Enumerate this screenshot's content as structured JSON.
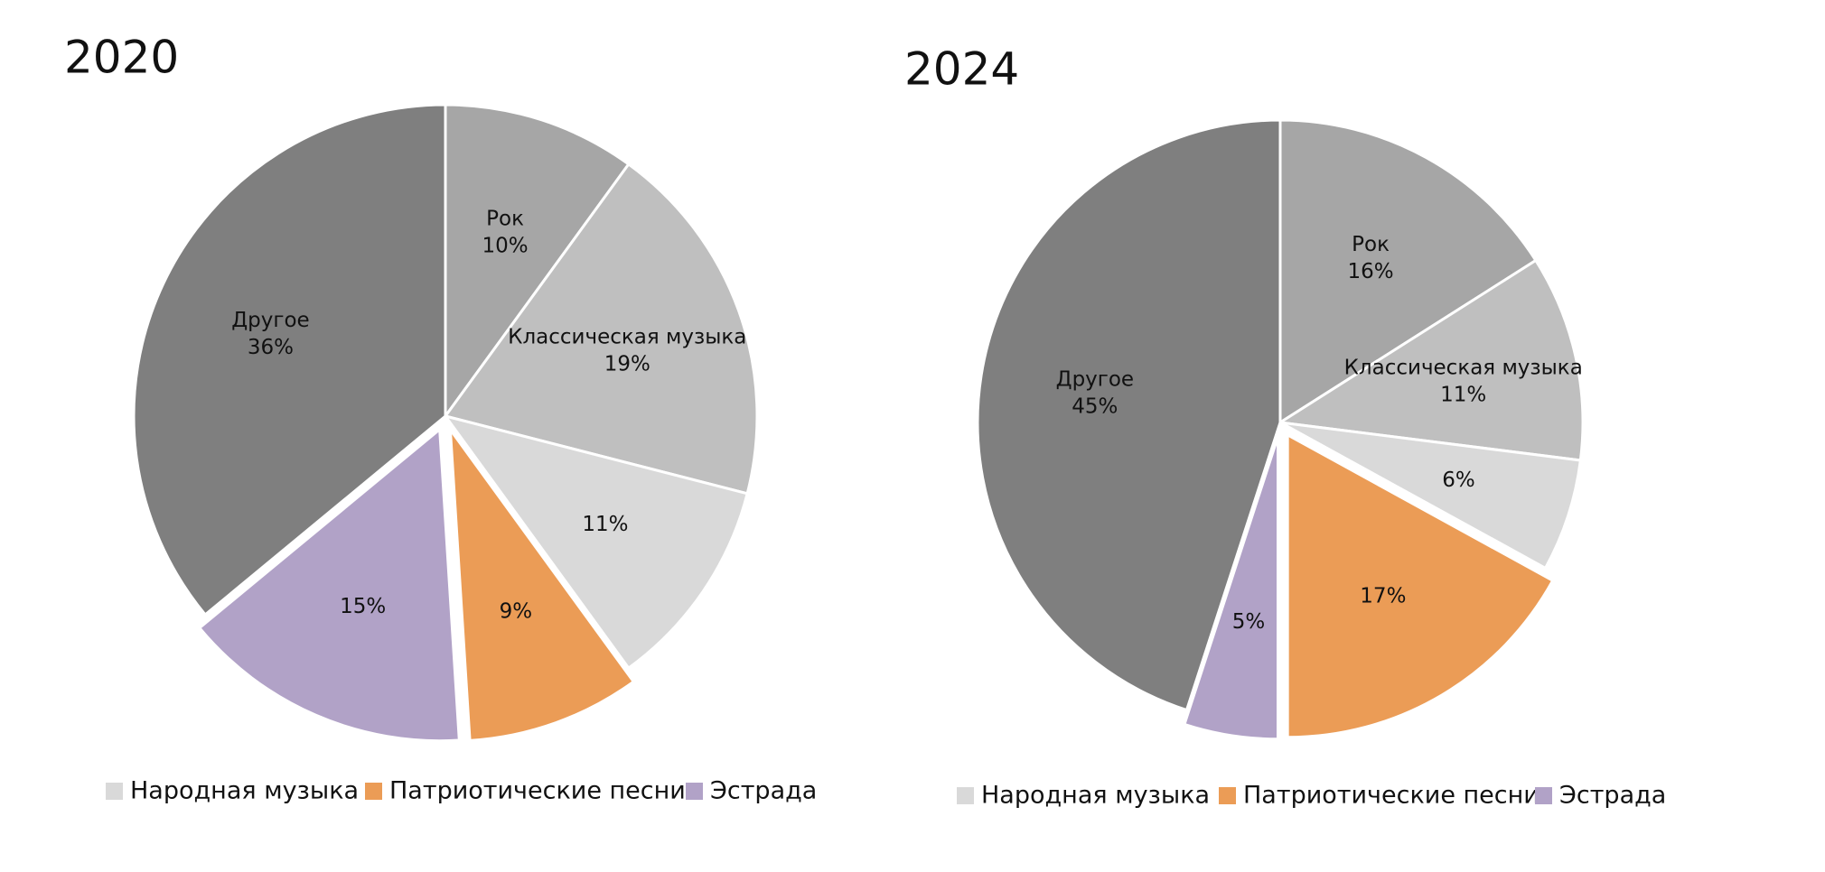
{
  "chart_data": [
    {
      "type": "pie",
      "title": "2020",
      "categories": [
        "Рок",
        "Классическая музыка",
        "Народная музыка",
        "Патриотические песни",
        "Эстрада",
        "Другое"
      ],
      "values": [
        10,
        19,
        11,
        9,
        15,
        36
      ],
      "value_labels": [
        "10%",
        "19%",
        "11%",
        "9%",
        "15%",
        "36%"
      ],
      "colors": [
        "#a6a6a6",
        "#bfbfbf",
        "#d9d9d9",
        "#eb9c56",
        "#b1a2c7",
        "#7f7f7f"
      ],
      "exploded": [
        false,
        false,
        false,
        true,
        true,
        false
      ],
      "in_legend": [
        false,
        false,
        true,
        true,
        true,
        false
      ]
    },
    {
      "type": "pie",
      "title": "2024",
      "categories": [
        "Рок",
        "Классическая музыка",
        "Народная музыка",
        "Патриотические песни",
        "Эстрада",
        "Другое"
      ],
      "values": [
        16,
        11,
        6,
        17,
        5,
        45
      ],
      "value_labels": [
        "16%",
        "11%",
        "6%",
        "17%",
        "5%",
        "45%"
      ],
      "colors": [
        "#a6a6a6",
        "#bfbfbf",
        "#d9d9d9",
        "#eb9c56",
        "#b1a2c7",
        "#7f7f7f"
      ],
      "exploded": [
        false,
        false,
        false,
        true,
        true,
        false
      ],
      "in_legend": [
        false,
        false,
        true,
        true,
        true,
        false
      ]
    }
  ]
}
